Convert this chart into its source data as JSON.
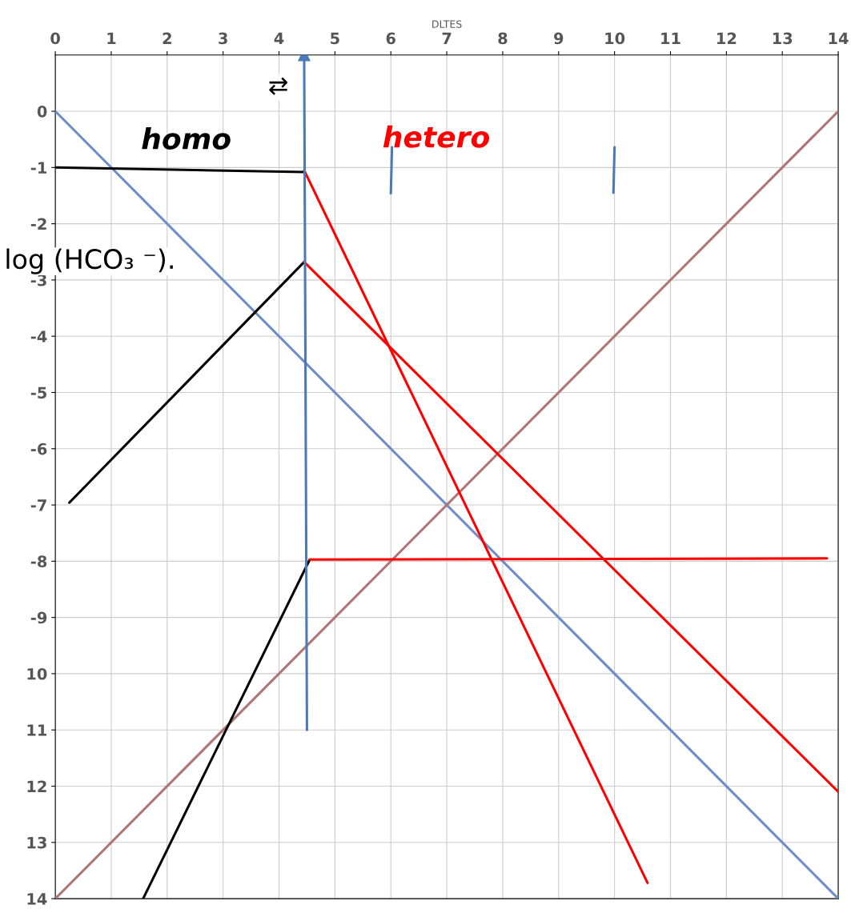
{
  "chart_data": {
    "type": "line",
    "xlabel": "DLTES",
    "xlim": [
      0,
      14
    ],
    "ylim": [
      -14,
      1
    ],
    "xticks": [
      0,
      1,
      2,
      3,
      4,
      5,
      6,
      7,
      8,
      9,
      10,
      11,
      12,
      13,
      14
    ],
    "yticks": [
      0,
      -1,
      -2,
      -3,
      -4,
      -5,
      -6,
      -7,
      -8,
      -9,
      {
        "value": -10,
        "label": "10"
      },
      {
        "value": -11,
        "label": "11"
      },
      {
        "value": -12,
        "label": "12"
      },
      {
        "value": -13,
        "label": "13"
      },
      {
        "value": -14,
        "label": "14"
      }
    ],
    "grid": true,
    "legend": false,
    "marker": "none",
    "line_style": "solid",
    "series": [
      {
        "color": "#6f8cc8",
        "x": [
          0,
          14
        ],
        "values": [
          0,
          -14
        ]
      },
      {
        "color": "#b07575",
        "x": [
          0,
          14
        ],
        "values": [
          -14,
          0
        ]
      },
      {
        "name": "homo",
        "color": "#000000",
        "x": [
          0,
          4.45
        ],
        "values": [
          -1.0,
          -1.08
        ]
      },
      {
        "color": "#000000",
        "x": [
          0.25,
          4.45
        ],
        "values": [
          -6.96,
          -2.68
        ]
      },
      {
        "color": "#000000",
        "x": [
          1.57,
          4.55
        ],
        "values": [
          -14,
          -7.97
        ]
      },
      {
        "name": "hetero",
        "color": "#ff0000",
        "x": [
          4.45,
          10.59
        ],
        "values": [
          -1.05,
          -13.72
        ]
      },
      {
        "color": "#ff0000",
        "x": [
          4.45,
          14
        ],
        "values": [
          -2.68,
          -12.1
        ]
      },
      {
        "color": "#ff0000",
        "x": [
          4.55,
          13.8
        ],
        "values": [
          -7.97,
          -7.95
        ]
      },
      {
        "color": "#4a7ab8",
        "x": [
          4.5,
          4.45
        ],
        "values": [
          -11,
          1
        ],
        "marker": "triangle"
      },
      {
        "color": "#4a7ab8",
        "x": [
          6.02,
          6.0
        ],
        "values": [
          -0.64,
          -1.46
        ]
      },
      {
        "color": "#4a7ab8",
        "x": [
          10.0,
          9.98
        ],
        "values": [
          -0.64,
          -1.45
        ]
      }
    ],
    "annotations": [
      "⇄",
      "log (HCO₃ ⁻)."
    ]
  }
}
